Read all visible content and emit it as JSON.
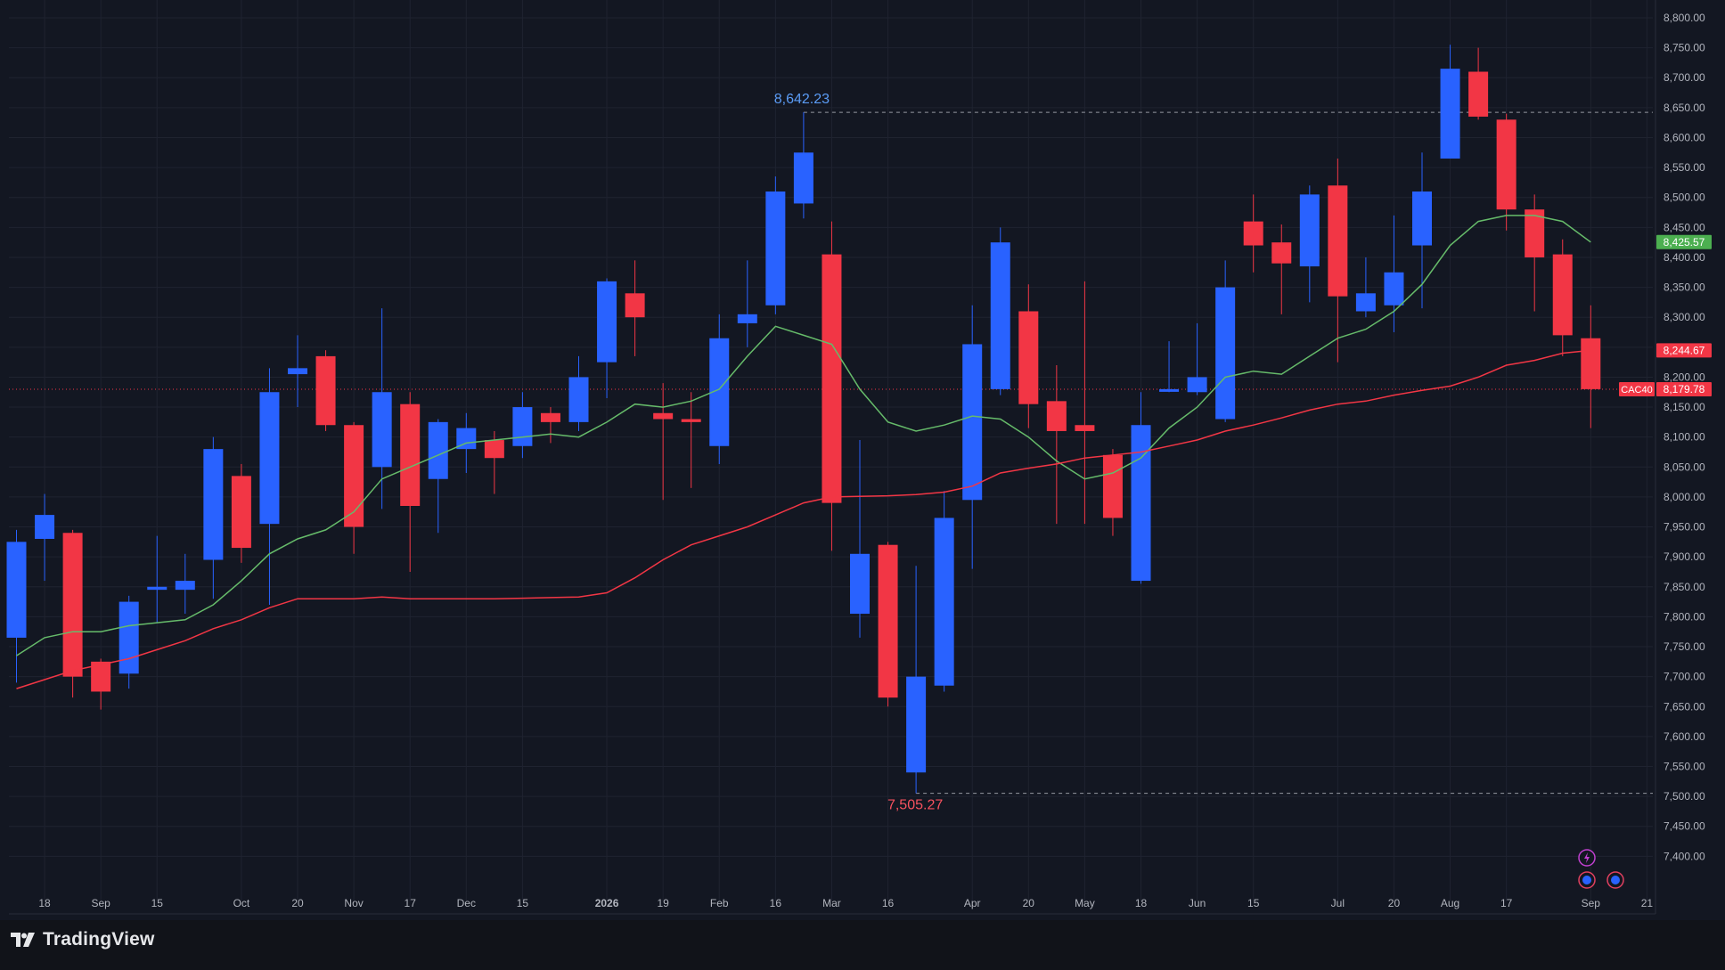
{
  "colors": {
    "background": "#131722",
    "grid": "#1f2330",
    "up": "#2962ff",
    "down": "#f23645",
    "ma_fast": "#66bb6a",
    "ma_slow": "#f23645",
    "text": "#b2b5be",
    "high_label": "#5b9cf6",
    "low_label": "#f7525f"
  },
  "brand": {
    "name": "TradingView",
    "logo_icon": "tradingview-logo-icon"
  },
  "chart_data": {
    "type": "candlestick",
    "symbol": "CAC40",
    "interval": "weekly",
    "ylim": [
      7355,
      8820
    ],
    "yticks": [
      8800,
      8750,
      8700,
      8650,
      8600,
      8550,
      8500,
      8450,
      8400,
      8350,
      8300,
      8250,
      8200,
      8150,
      8100,
      8050,
      8000,
      7950,
      7900,
      7850,
      7800,
      7750,
      7700,
      7650,
      7600,
      7550,
      7500,
      7450,
      7400
    ],
    "ytick_labels": [
      "8,800.00",
      "8,750.00",
      "8,700.00",
      "8,650.00",
      "8,600.00",
      "8,550.00",
      "8,500.00",
      "8,450.00",
      "8,400.00",
      "8,350.00",
      "8,300.00",
      "8,250.00",
      "8,200.00",
      "8,150.00",
      "8,100.00",
      "8,050.00",
      "8,000.00",
      "7,950.00",
      "7,900.00",
      "7,850.00",
      "7,800.00",
      "7,750.00",
      "7,700.00",
      "7,650.00",
      "7,600.00",
      "7,550.00",
      "7,500.00",
      "7,450.00",
      "7,400.00"
    ],
    "xticks": [
      {
        "i": 1,
        "label": "18"
      },
      {
        "i": 3,
        "label": "Sep"
      },
      {
        "i": 5,
        "label": "15"
      },
      {
        "i": 8,
        "label": "Oct"
      },
      {
        "i": 10,
        "label": "20"
      },
      {
        "i": 12,
        "label": "Nov"
      },
      {
        "i": 14,
        "label": "17"
      },
      {
        "i": 16,
        "label": "Dec"
      },
      {
        "i": 18,
        "label": "15"
      },
      {
        "i": 21,
        "label": "2026"
      },
      {
        "i": 23,
        "label": "19"
      },
      {
        "i": 25,
        "label": "Feb"
      },
      {
        "i": 27,
        "label": "16"
      },
      {
        "i": 29,
        "label": "Mar"
      },
      {
        "i": 31,
        "label": "16"
      },
      {
        "i": 34,
        "label": "Apr"
      },
      {
        "i": 36,
        "label": "20"
      },
      {
        "i": 38,
        "label": "May"
      },
      {
        "i": 40,
        "label": "18"
      },
      {
        "i": 42,
        "label": "Jun"
      },
      {
        "i": 44,
        "label": "15"
      },
      {
        "i": 47,
        "label": "Jul"
      },
      {
        "i": 49,
        "label": "20"
      },
      {
        "i": 51,
        "label": "Aug"
      },
      {
        "i": 53,
        "label": "17"
      },
      {
        "i": 56,
        "label": "Sep"
      },
      {
        "i": 58,
        "label": "21"
      }
    ],
    "candles": [
      {
        "o": 7765,
        "h": 7945,
        "l": 7690,
        "c": 7925
      },
      {
        "o": 7930,
        "h": 8005,
        "l": 7860,
        "c": 7970
      },
      {
        "o": 7940,
        "h": 7945,
        "l": 7665,
        "c": 7700
      },
      {
        "o": 7725,
        "h": 7730,
        "l": 7645,
        "c": 7675
      },
      {
        "o": 7705,
        "h": 7835,
        "l": 7680,
        "c": 7825
      },
      {
        "o": 7845,
        "h": 7935,
        "l": 7790,
        "c": 7850
      },
      {
        "o": 7845,
        "h": 7905,
        "l": 7805,
        "c": 7860
      },
      {
        "o": 7895,
        "h": 8100,
        "l": 7830,
        "c": 8080
      },
      {
        "o": 8035,
        "h": 8055,
        "l": 7890,
        "c": 7915
      },
      {
        "o": 7955,
        "h": 8215,
        "l": 7820,
        "c": 8175
      },
      {
        "o": 8205,
        "h": 8270,
        "l": 8150,
        "c": 8215
      },
      {
        "o": 8235,
        "h": 8245,
        "l": 8110,
        "c": 8120
      },
      {
        "o": 8120,
        "h": 8125,
        "l": 7905,
        "c": 7950
      },
      {
        "o": 8050,
        "h": 8315,
        "l": 7980,
        "c": 8175
      },
      {
        "o": 8155,
        "h": 8175,
        "l": 7875,
        "c": 7985
      },
      {
        "o": 8030,
        "h": 8130,
        "l": 7940,
        "c": 8125
      },
      {
        "o": 8080,
        "h": 8140,
        "l": 8040,
        "c": 8115
      },
      {
        "o": 8095,
        "h": 8110,
        "l": 8005,
        "c": 8065
      },
      {
        "o": 8085,
        "h": 8175,
        "l": 8065,
        "c": 8150
      },
      {
        "o": 8140,
        "h": 8150,
        "l": 8090,
        "c": 8125
      },
      {
        "o": 8125,
        "h": 8235,
        "l": 8110,
        "c": 8200
      },
      {
        "o": 8225,
        "h": 8365,
        "l": 8165,
        "c": 8360
      },
      {
        "o": 8340,
        "h": 8395,
        "l": 8235,
        "c": 8300
      },
      {
        "o": 8140,
        "h": 8190,
        "l": 7995,
        "c": 8130
      },
      {
        "o": 8130,
        "h": 8175,
        "l": 8015,
        "c": 8125
      },
      {
        "o": 8085,
        "h": 8305,
        "l": 8055,
        "c": 8265
      },
      {
        "o": 8290,
        "h": 8395,
        "l": 8250,
        "c": 8305
      },
      {
        "o": 8320,
        "h": 8535,
        "l": 8305,
        "c": 8510
      },
      {
        "o": 8490,
        "h": 8642.23,
        "l": 8465,
        "c": 8575
      },
      {
        "o": 8405,
        "h": 8460,
        "l": 7910,
        "c": 7990
      },
      {
        "o": 7805,
        "h": 8095,
        "l": 7765,
        "c": 7905
      },
      {
        "o": 7920,
        "h": 7925,
        "l": 7650,
        "c": 7665
      },
      {
        "o": 7540,
        "h": 7885,
        "l": 7505.27,
        "c": 7700
      },
      {
        "o": 7685,
        "h": 8010,
        "l": 7675,
        "c": 7965
      },
      {
        "o": 7995,
        "h": 8320,
        "l": 7880,
        "c": 8255
      },
      {
        "o": 8180,
        "h": 8450,
        "l": 8170,
        "c": 8425
      },
      {
        "o": 8310,
        "h": 8355,
        "l": 8115,
        "c": 8155
      },
      {
        "o": 8160,
        "h": 8220,
        "l": 7955,
        "c": 8110
      },
      {
        "o": 8120,
        "h": 8360,
        "l": 7955,
        "c": 8110
      },
      {
        "o": 8070,
        "h": 8080,
        "l": 7935,
        "c": 7965
      },
      {
        "o": 7860,
        "h": 8175,
        "l": 7855,
        "c": 8120
      },
      {
        "o": 8180,
        "h": 8260,
        "l": 8175,
        "c": 8180
      },
      {
        "o": 8175,
        "h": 8290,
        "l": 8170,
        "c": 8200
      },
      {
        "o": 8130,
        "h": 8395,
        "l": 8125,
        "c": 8350
      },
      {
        "o": 8460,
        "h": 8505,
        "l": 8375,
        "c": 8420
      },
      {
        "o": 8425,
        "h": 8455,
        "l": 8305,
        "c": 8390
      },
      {
        "o": 8385,
        "h": 8520,
        "l": 8325,
        "c": 8505
      },
      {
        "o": 8520,
        "h": 8565,
        "l": 8225,
        "c": 8335
      },
      {
        "o": 8310,
        "h": 8400,
        "l": 8300,
        "c": 8340
      },
      {
        "o": 8320,
        "h": 8470,
        "l": 8275,
        "c": 8375
      },
      {
        "o": 8420,
        "h": 8575,
        "l": 8315,
        "c": 8510
      },
      {
        "o": 8565,
        "h": 8755,
        "l": 8565,
        "c": 8715
      },
      {
        "o": 8710,
        "h": 8750,
        "l": 8630,
        "c": 8635
      },
      {
        "o": 8630,
        "h": 8640,
        "l": 8445,
        "c": 8480
      },
      {
        "o": 8480,
        "h": 8505,
        "l": 8310,
        "c": 8400
      },
      {
        "o": 8405,
        "h": 8430,
        "l": 8235,
        "c": 8270
      },
      {
        "o": 8265,
        "h": 8320,
        "l": 8115,
        "c": 8180
      }
    ],
    "series": [
      {
        "values": [
          7735,
          7765,
          7775,
          7775,
          7785,
          7790,
          7795,
          7820,
          7860,
          7905,
          7930,
          7945,
          7975,
          8030,
          8050,
          8070,
          8090,
          8095,
          8100,
          8105,
          8100,
          8125,
          8155,
          8150,
          8160,
          8180,
          8235,
          8285,
          8270,
          8255,
          8180,
          8125,
          8110,
          8120,
          8135,
          8130,
          8100,
          8060,
          8030,
          8040,
          8065,
          8115,
          8150,
          8200,
          8210,
          8205,
          8235,
          8265,
          8280,
          8310,
          8355,
          8420,
          8460,
          8470,
          8470,
          8460,
          8425.57
        ]
      },
      {
        "values": [
          7680,
          7695,
          7710,
          7720,
          7730,
          7745,
          7760,
          7780,
          7795,
          7815,
          7830,
          7830,
          7830,
          7833,
          7830,
          7830,
          7830,
          7830,
          7831,
          7832,
          7833,
          7840,
          7865,
          7895,
          7920,
          7935,
          7950,
          7970,
          7990,
          8000,
          8001,
          8002,
          8004,
          8008,
          8018,
          8040,
          8048,
          8055,
          8065,
          8070,
          8075,
          8085,
          8095,
          8110,
          8120,
          8132,
          8145,
          8155,
          8160,
          8170,
          8178,
          8185,
          8200,
          8220,
          8228,
          8240,
          8244.67
        ]
      }
    ],
    "annotations": [
      {
        "type": "high",
        "label": "8,642.23",
        "value": 8642.23,
        "i": 28
      },
      {
        "type": "low",
        "label": "7,505.27",
        "value": 7505.27,
        "i": 32
      }
    ],
    "last_price": {
      "label": "CAC40",
      "value": 8179.78,
      "text": "8,179.78"
    },
    "ma_fast_last": {
      "value": 8425.57,
      "text": "8,425.57"
    },
    "ma_slow_last": {
      "value": 8244.67,
      "text": "8,244.67"
    },
    "chart_icons": [
      "alert-icon",
      "news-icon",
      "event-icon"
    ]
  }
}
